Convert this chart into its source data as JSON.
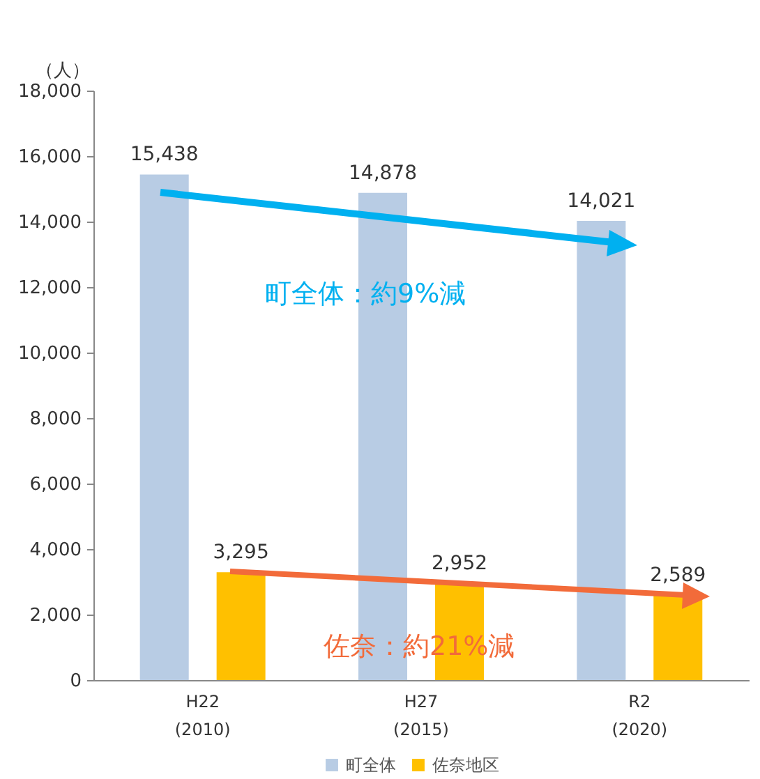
{
  "chart_data": {
    "type": "bar",
    "ylabel": "（人）",
    "categories": [
      "H22 (2010)",
      "H27 (2015)",
      "R2 (2020)"
    ],
    "series": [
      {
        "name": "町全体",
        "color": "#b8cce4",
        "values": [
          15438,
          14878,
          14021
        ],
        "value_labels": [
          "15,438",
          "14,878",
          "14,021"
        ]
      },
      {
        "name": "佐奈地区",
        "color": "#ffc000",
        "values": [
          3295,
          2952,
          2589
        ],
        "value_labels": [
          "3,295",
          "2,952",
          "2,589"
        ]
      }
    ],
    "ylim": [
      0,
      18000
    ],
    "yticks": [
      0,
      {
        "value": 2000,
        "label": "2,000"
      },
      {
        "value": 4000,
        "label": "4,000"
      },
      {
        "value": 6000,
        "label": "6,000"
      },
      {
        "value": 8000,
        "label": "8,000"
      },
      {
        "value": 10000,
        "label": "10,000"
      },
      {
        "value": 12000,
        "label": "12,000"
      },
      {
        "value": 14000,
        "label": "14,000"
      },
      {
        "value": 16000,
        "label": "16,000"
      },
      {
        "value": 18000,
        "label": "18,000"
      }
    ],
    "legend": "bottom",
    "annotations": [
      "町全体：約9%減",
      "佐奈：約21%減"
    ]
  }
}
